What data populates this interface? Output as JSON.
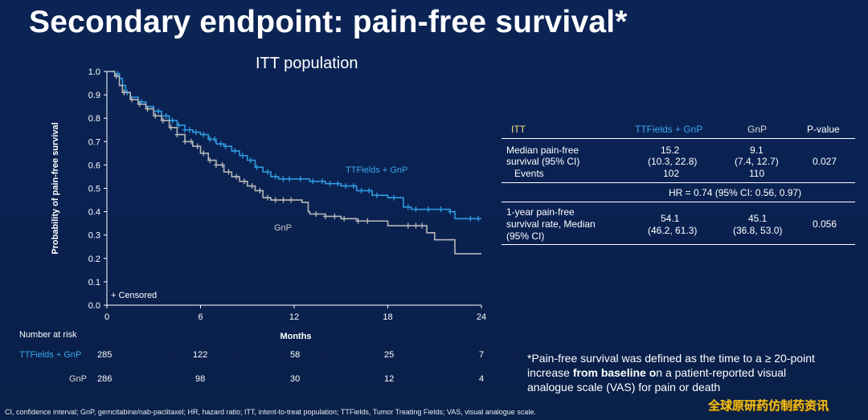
{
  "slide": {
    "title": "Secondary endpoint: pain-free survival*",
    "subtitle": "ITT population",
    "footnote_pre": "*Pain-free survival was defined as the time to a ≥ 20-point increase ",
    "footnote_bold": "from baseline o",
    "footnote_post": "n a patient-reported visual analogue scale (VAS) for pain or death",
    "abbreviations": "CI, confidence interval; GnP, gemcitabine/nab-paclitaxel; HR, hazard ratio; ITT, intent-to-treat population; TTFields, Tumor Treating Fields; VAS, visual analogue scale.",
    "watermark": "全球原研药仿制药资讯"
  },
  "chart_data": {
    "type": "line",
    "title": "ITT population",
    "xlabel": "Months",
    "ylabel": "Probability of pain-free survival",
    "xlim": [
      0,
      24
    ],
    "ylim": [
      0,
      1.0
    ],
    "x_ticks": [
      0,
      6,
      12,
      18,
      24
    ],
    "y_ticks": [
      "0.0",
      "0.1",
      "0.2",
      "0.3",
      "0.4",
      "0.5",
      "0.6",
      "0.7",
      "0.8",
      "0.9",
      "1.0"
    ],
    "censored_legend": "+ Censored",
    "series": [
      {
        "name": "TTFields + GnP",
        "color": "#2f9be0",
        "points": [
          [
            0,
            1.0
          ],
          [
            0.5,
            0.99
          ],
          [
            0.8,
            0.97
          ],
          [
            1.0,
            0.94
          ],
          [
            1.2,
            0.91
          ],
          [
            1.5,
            0.89
          ],
          [
            2.0,
            0.87
          ],
          [
            2.5,
            0.85
          ],
          [
            3.0,
            0.83
          ],
          [
            3.5,
            0.81
          ],
          [
            4.0,
            0.79
          ],
          [
            4.5,
            0.77
          ],
          [
            5.0,
            0.75
          ],
          [
            5.5,
            0.74
          ],
          [
            6.0,
            0.73
          ],
          [
            6.5,
            0.71
          ],
          [
            7.0,
            0.69
          ],
          [
            7.5,
            0.68
          ],
          [
            8.0,
            0.66
          ],
          [
            8.5,
            0.64
          ],
          [
            9.0,
            0.62
          ],
          [
            9.5,
            0.59
          ],
          [
            10.0,
            0.57
          ],
          [
            10.5,
            0.55
          ],
          [
            11.0,
            0.54
          ],
          [
            12.0,
            0.54
          ],
          [
            13.0,
            0.53
          ],
          [
            14.0,
            0.52
          ],
          [
            15.0,
            0.51
          ],
          [
            16.0,
            0.49
          ],
          [
            17.0,
            0.47
          ],
          [
            18.0,
            0.46
          ],
          [
            19.0,
            0.42
          ],
          [
            19.5,
            0.41
          ],
          [
            20.5,
            0.41
          ],
          [
            22.0,
            0.4
          ],
          [
            22.3,
            0.37
          ],
          [
            24.0,
            0.37
          ]
        ],
        "censored": [
          0.7,
          1.3,
          2.2,
          3.3,
          3.8,
          4.2,
          4.6,
          5.0,
          5.3,
          5.7,
          6.2,
          6.6,
          6.9,
          7.3,
          7.6,
          8.2,
          8.7,
          9.2,
          9.6,
          10.3,
          10.8,
          11.3,
          11.7,
          12.4,
          13.2,
          13.8,
          14.3,
          14.8,
          15.3,
          15.8,
          16.3,
          16.8,
          17.3,
          18.4,
          19.3,
          19.8,
          20.6,
          21.4,
          22.0,
          23.3,
          23.8
        ]
      },
      {
        "name": "GnP",
        "color": "#b8b8b8",
        "points": [
          [
            0,
            1.0
          ],
          [
            0.5,
            0.98
          ],
          [
            0.8,
            0.94
          ],
          [
            1.0,
            0.91
          ],
          [
            1.5,
            0.88
          ],
          [
            2.0,
            0.86
          ],
          [
            2.5,
            0.84
          ],
          [
            3.0,
            0.81
          ],
          [
            3.5,
            0.79
          ],
          [
            4.0,
            0.76
          ],
          [
            4.5,
            0.73
          ],
          [
            5.0,
            0.7
          ],
          [
            5.5,
            0.68
          ],
          [
            6.0,
            0.65
          ],
          [
            6.5,
            0.62
          ],
          [
            7.0,
            0.6
          ],
          [
            7.5,
            0.57
          ],
          [
            8.0,
            0.55
          ],
          [
            8.5,
            0.53
          ],
          [
            9.0,
            0.51
          ],
          [
            9.5,
            0.49
          ],
          [
            10.0,
            0.46
          ],
          [
            10.5,
            0.45
          ],
          [
            11.0,
            0.45
          ],
          [
            12.0,
            0.45
          ],
          [
            12.5,
            0.44
          ],
          [
            12.9,
            0.4
          ],
          [
            13.0,
            0.39
          ],
          [
            14.0,
            0.38
          ],
          [
            15.0,
            0.37
          ],
          [
            16.0,
            0.36
          ],
          [
            18.0,
            0.34
          ],
          [
            19.0,
            0.34
          ],
          [
            20.5,
            0.31
          ],
          [
            21.0,
            0.28
          ],
          [
            22.0,
            0.28
          ],
          [
            22.3,
            0.22
          ],
          [
            24.0,
            0.22
          ]
        ],
        "censored": [
          0.6,
          1.1,
          1.6,
          2.1,
          2.6,
          3.1,
          3.6,
          4.1,
          4.5,
          5.0,
          5.4,
          5.8,
          6.2,
          6.6,
          7.0,
          7.4,
          7.8,
          8.3,
          8.8,
          9.3,
          9.8,
          10.3,
          10.8,
          11.3,
          11.8,
          13.4,
          14.0,
          14.6,
          15.2,
          16.1,
          16.7,
          19.3,
          19.8,
          20.2
        ]
      }
    ],
    "annotations": [
      "TTFields + GnP",
      "GnP"
    ]
  },
  "risk_table": {
    "header": "Number at risk",
    "times": [
      0,
      6,
      12,
      18,
      24
    ],
    "rows": [
      {
        "label": "TTFields + GnP",
        "counts": [
          "285",
          "122",
          "58",
          "25",
          "7"
        ]
      },
      {
        "label": "GnP",
        "counts": [
          "286",
          "98",
          "30",
          "12",
          "4"
        ]
      }
    ]
  },
  "results_table": {
    "headers": [
      "ITT",
      "TTFields + GnP",
      "GnP",
      "P-value"
    ],
    "rows": [
      {
        "label": [
          "Median pain-free",
          "survival (95% CI)",
          "Events"
        ],
        "ttf": [
          "15.2",
          "(10.3, 22.8)",
          "102"
        ],
        "gnp": [
          "9.1",
          "(7.4, 12.7)",
          "110"
        ],
        "p": "0.027"
      },
      {
        "full": "HR = 0.74 (95% CI: 0.56, 0.97)"
      },
      {
        "label": [
          "1-year pain-free",
          "survival rate, Median",
          "(95% CI)"
        ],
        "ttf": [
          "54.1",
          "(46.2, 61.3)"
        ],
        "gnp": [
          "45.1",
          "(36.8, 53.0)"
        ],
        "p": "0.056"
      }
    ]
  }
}
